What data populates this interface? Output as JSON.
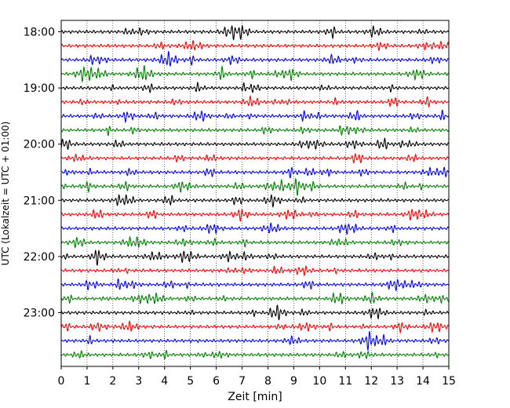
{
  "chart_data": {
    "type": "line",
    "title": "",
    "xlabel": "Zeit  [min]",
    "ylabel": "UTC (Lokalzeit = UTC + 01:00)",
    "xlim": [
      0,
      15
    ],
    "x_ticks": [
      "0",
      "1",
      "2",
      "3",
      "4",
      "5",
      "6",
      "7",
      "8",
      "9",
      "10",
      "11",
      "12",
      "13",
      "14",
      "15"
    ],
    "y_ticks": [
      "18:00",
      "19:00",
      "20:00",
      "21:00",
      "22:00",
      "23:00"
    ],
    "grid": "vertical dotted",
    "trace_interval_minutes": 15,
    "traces": [
      {
        "start": "18:00",
        "color": "#000000"
      },
      {
        "start": "18:15",
        "color": "#ff0000"
      },
      {
        "start": "18:30",
        "color": "#0000ff"
      },
      {
        "start": "18:45",
        "color": "#008000"
      },
      {
        "start": "19:00",
        "color": "#000000"
      },
      {
        "start": "19:15",
        "color": "#ff0000"
      },
      {
        "start": "19:30",
        "color": "#0000ff"
      },
      {
        "start": "19:45",
        "color": "#008000"
      },
      {
        "start": "20:00",
        "color": "#000000"
      },
      {
        "start": "20:15",
        "color": "#ff0000"
      },
      {
        "start": "20:30",
        "color": "#0000ff"
      },
      {
        "start": "20:45",
        "color": "#008000"
      },
      {
        "start": "21:00",
        "color": "#000000"
      },
      {
        "start": "21:15",
        "color": "#ff0000"
      },
      {
        "start": "21:30",
        "color": "#0000ff"
      },
      {
        "start": "21:45",
        "color": "#008000"
      },
      {
        "start": "22:00",
        "color": "#000000"
      },
      {
        "start": "22:15",
        "color": "#ff0000"
      },
      {
        "start": "22:30",
        "color": "#0000ff"
      },
      {
        "start": "22:45",
        "color": "#008000"
      },
      {
        "start": "23:00",
        "color": "#000000"
      },
      {
        "start": "23:15",
        "color": "#ff0000"
      },
      {
        "start": "23:30",
        "color": "#0000ff"
      },
      {
        "start": "23:45",
        "color": "#008000"
      }
    ]
  }
}
